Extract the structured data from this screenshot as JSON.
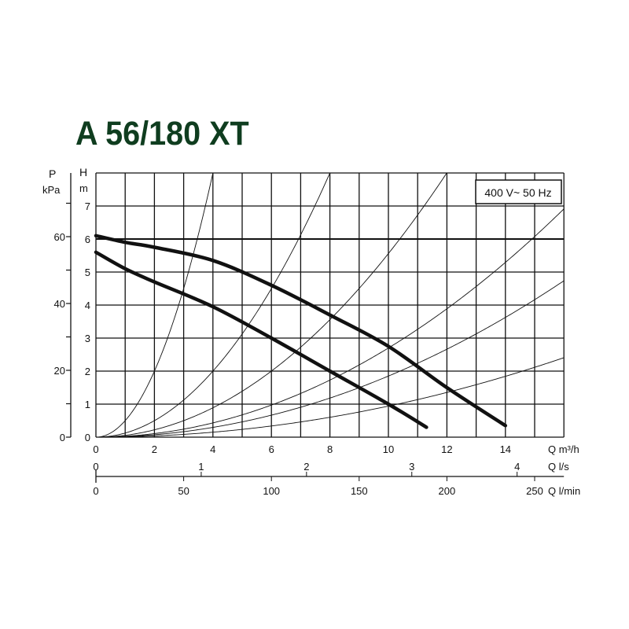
{
  "chart_data": {
    "type": "line",
    "title": "A 56/180 XT",
    "annotation": "400 V~ 50 Hz",
    "xlabel": "Q m³/h",
    "xlim": [
      0,
      16
    ],
    "x_ticks": [
      0,
      2,
      4,
      6,
      8,
      10,
      12,
      14
    ],
    "secondary_x_axes": [
      {
        "label": "Q l/s",
        "ticks": [
          0,
          1,
          2,
          3,
          4
        ]
      },
      {
        "label": "Q l/min",
        "ticks": [
          0,
          50,
          100,
          150,
          200,
          250
        ]
      }
    ],
    "ylabel": "H m",
    "ylim": [
      0,
      8
    ],
    "y_ticks": [
      0,
      1,
      2,
      3,
      4,
      5,
      6,
      7
    ],
    "secondary_y_axis": {
      "label_top": "P",
      "label_unit": "kPa",
      "ticks": [
        0,
        20,
        40,
        60
      ]
    },
    "grid": true,
    "series": [
      {
        "x": [
          0,
          1,
          2,
          4,
          6,
          8,
          10,
          12,
          14
        ],
        "y": [
          6.1,
          5.9,
          5.75,
          5.35,
          4.6,
          3.7,
          2.75,
          1.5,
          0.35
        ]
      },
      {
        "x": [
          0,
          1,
          2,
          4,
          6,
          8,
          10,
          11.3
        ],
        "y": [
          5.6,
          5.1,
          4.7,
          3.95,
          3.0,
          2.0,
          1.0,
          0.3
        ]
      }
    ],
    "system_curves_k": [
      0.5,
      0.125,
      0.0556,
      0.027,
      0.0185,
      0.0094
    ]
  }
}
